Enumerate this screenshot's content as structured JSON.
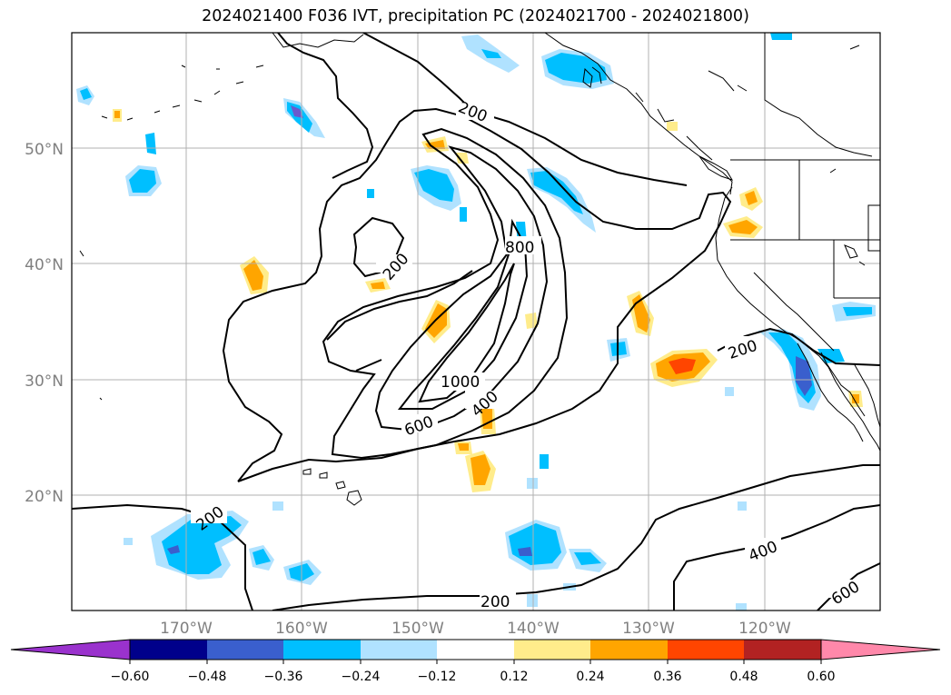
{
  "title": "2024021400 F036 IVT, precipitation PC (2024021700 - 2024021800)",
  "map": {
    "lon_ticks": [
      "170°W",
      "160°W",
      "150°W",
      "140°W",
      "130°W",
      "120°W"
    ],
    "lat_ticks": [
      "50°N",
      "40°N",
      "30°N",
      "20°N"
    ],
    "tick_color": "#808080",
    "gridline_color": "#b0b0b0",
    "contour_color": "#000000"
  },
  "contour_labels": [
    {
      "id": "c200-nw",
      "text": "200"
    },
    {
      "id": "c200-w",
      "text": "200"
    },
    {
      "id": "c800",
      "text": "800"
    },
    {
      "id": "c1000",
      "text": "1000"
    },
    {
      "id": "c400",
      "text": "400"
    },
    {
      "id": "c600",
      "text": "600"
    },
    {
      "id": "c200-sw",
      "text": "200"
    },
    {
      "id": "c200-e",
      "text": "200"
    },
    {
      "id": "c400-se",
      "text": "400"
    },
    {
      "id": "c600-se",
      "text": "600"
    },
    {
      "id": "c200-s",
      "text": "200"
    }
  ],
  "colorbar": {
    "ticks": [
      "−0.60",
      "−0.48",
      "−0.36",
      "−0.24",
      "−0.12",
      "0.12",
      "0.24",
      "0.36",
      "0.48",
      "0.60"
    ],
    "colors": [
      "#9a32cd",
      "#00008b",
      "#3a5fcd",
      "#00bfff",
      "#b0e2ff",
      "#ffffff",
      "#ffec8b",
      "#ffa500",
      "#ff4500",
      "#b22222",
      "#ff88aa"
    ]
  },
  "palette": {
    "purple": "#6a5acd",
    "blue_dark": "#3a5fcd",
    "blue": "#00bfff",
    "blue_light": "#b0e2ff",
    "yellow": "#ffec8b",
    "orange": "#ffa500",
    "red": "#ff4500"
  }
}
